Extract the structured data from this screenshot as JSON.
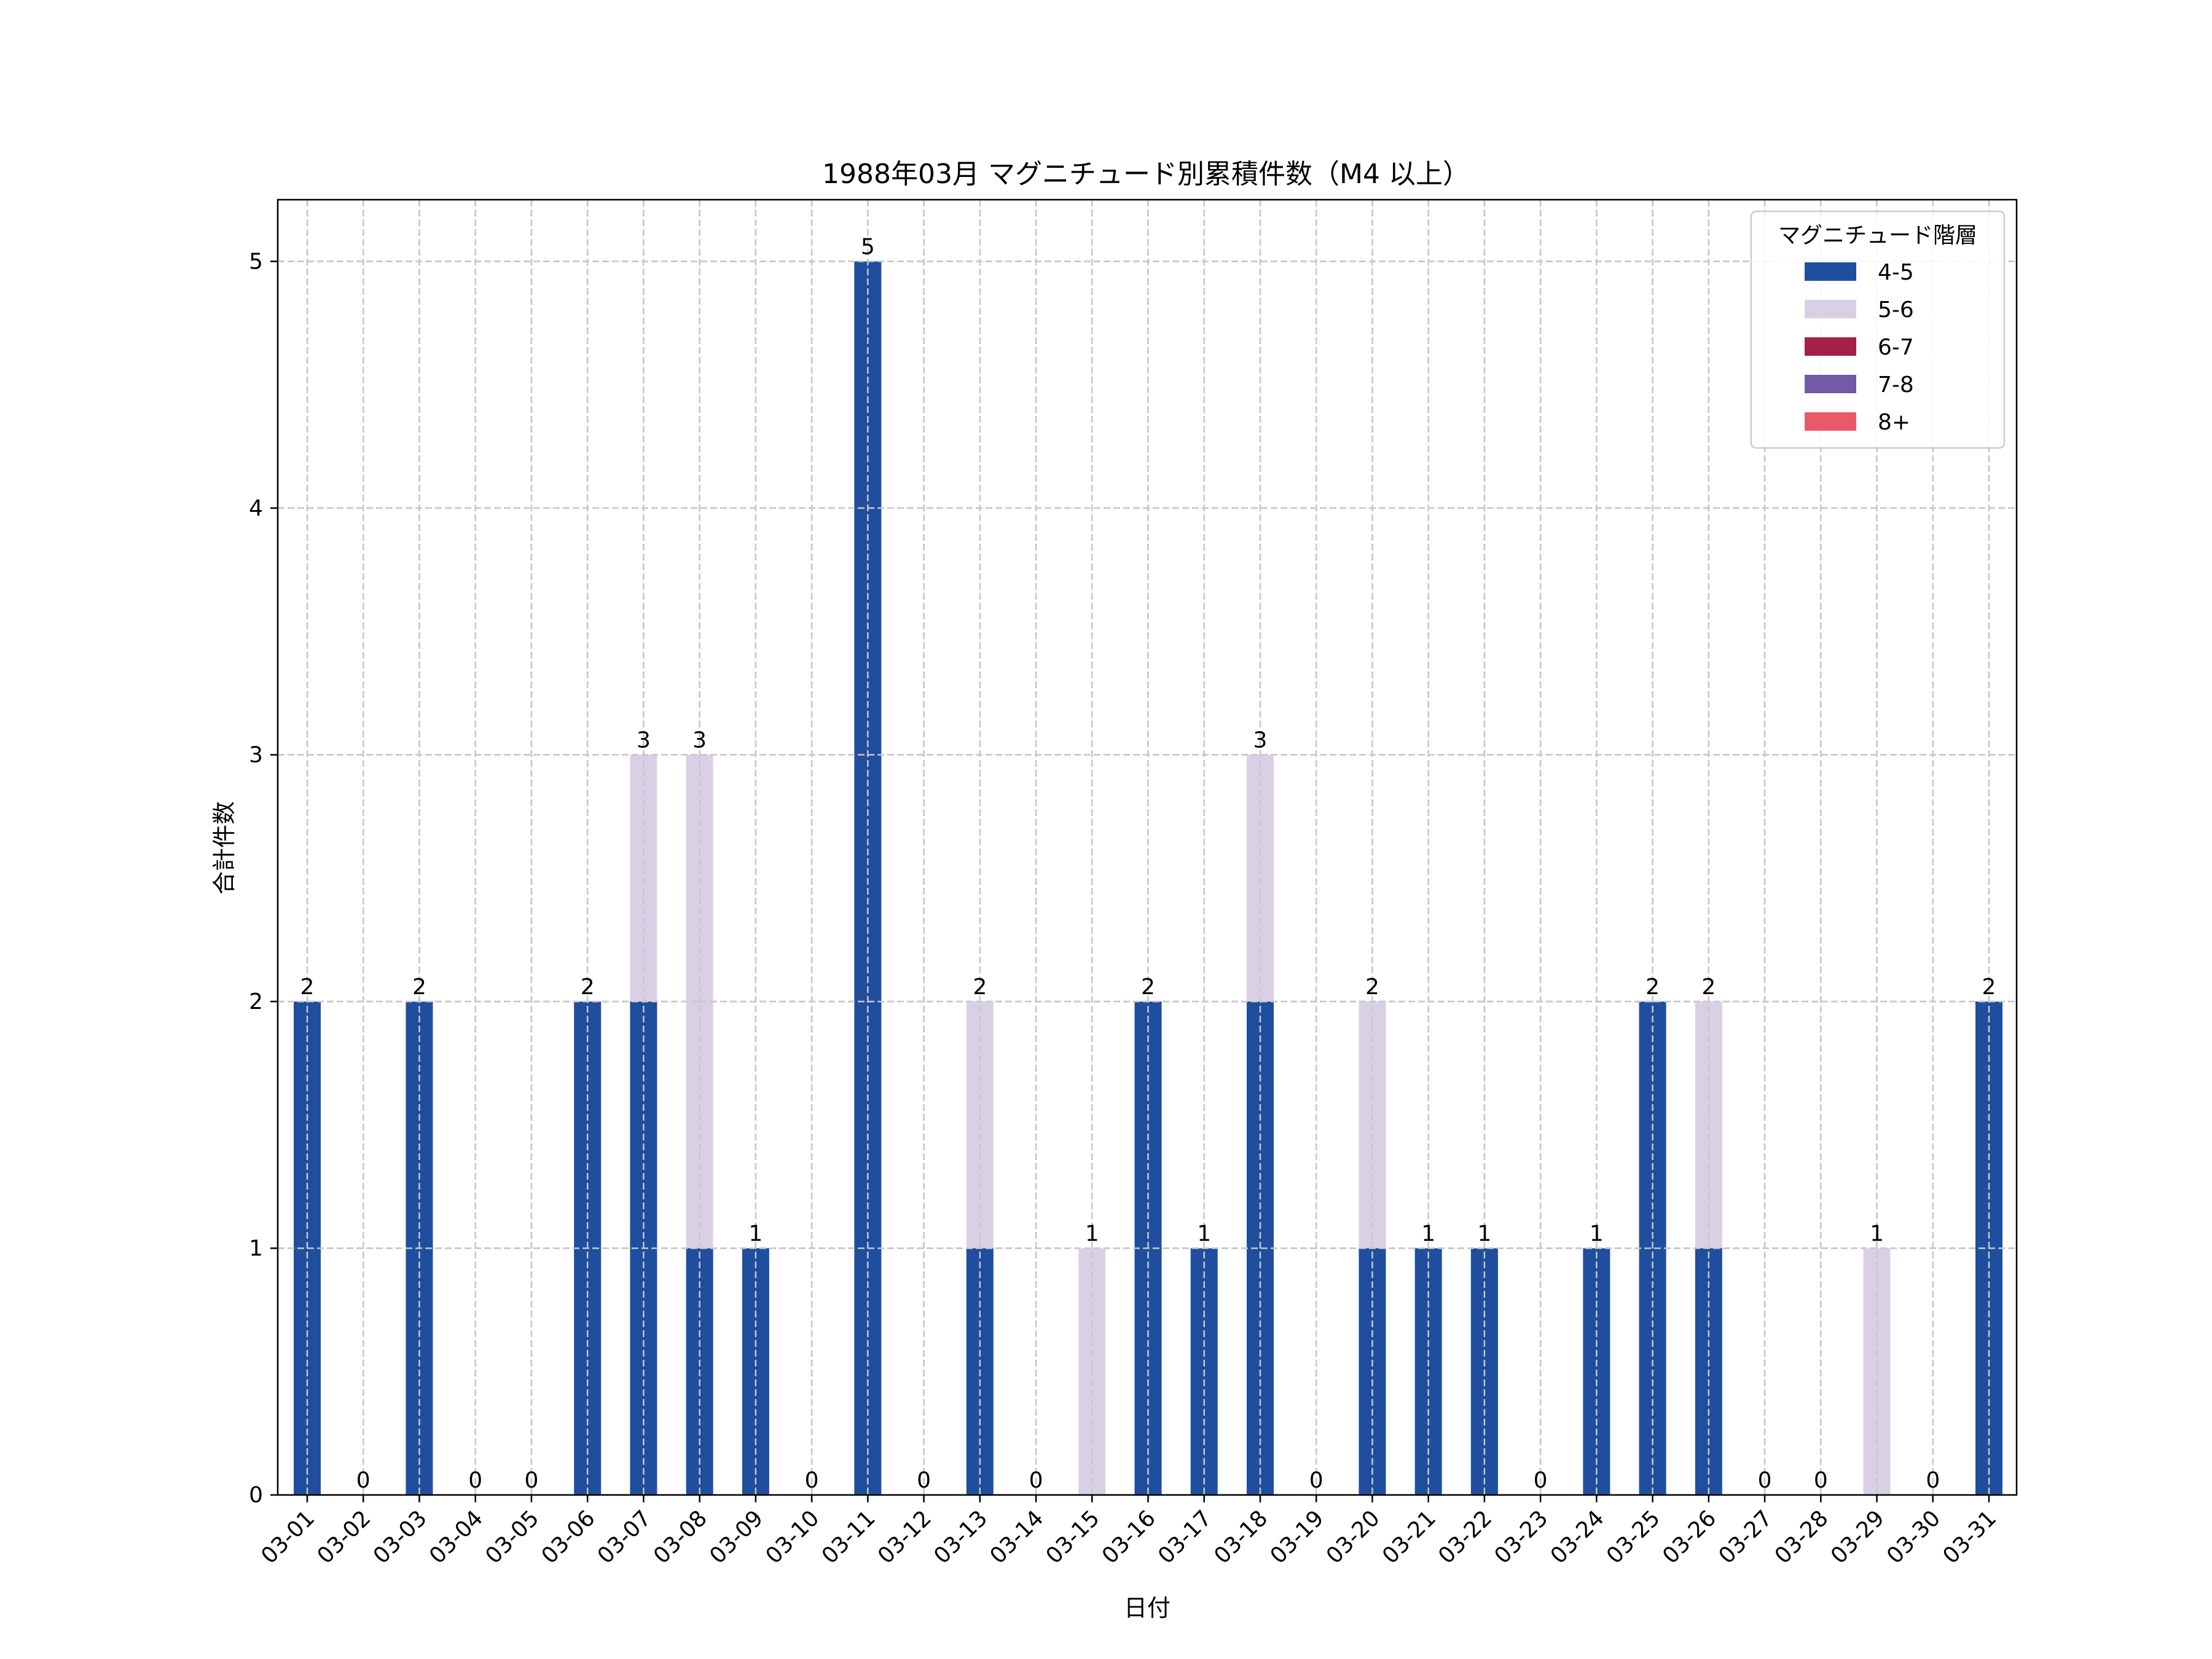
{
  "chart_data": {
    "type": "bar",
    "stacked": true,
    "title": "1988年03月 マグニチュード別累積件数（M4 以上）",
    "xlabel": "日付",
    "ylabel": "合計件数",
    "ylim": [
      0,
      5.25
    ],
    "yticks": [
      0,
      1,
      2,
      3,
      4,
      5
    ],
    "grid": true,
    "legend_title": "マグニチュード階層",
    "legend_position": "top-right",
    "categories": [
      "03-01",
      "03-02",
      "03-03",
      "03-04",
      "03-05",
      "03-06",
      "03-07",
      "03-08",
      "03-09",
      "03-10",
      "03-11",
      "03-12",
      "03-13",
      "03-14",
      "03-15",
      "03-16",
      "03-17",
      "03-18",
      "03-19",
      "03-20",
      "03-21",
      "03-22",
      "03-23",
      "03-24",
      "03-25",
      "03-26",
      "03-27",
      "03-28",
      "03-29",
      "03-30",
      "03-31"
    ],
    "series": [
      {
        "name": "4-5",
        "color": "#1f4e9e",
        "values": [
          2,
          0,
          2,
          0,
          0,
          2,
          2,
          1,
          1,
          0,
          5,
          0,
          1,
          0,
          0,
          2,
          1,
          2,
          0,
          1,
          1,
          1,
          0,
          1,
          2,
          1,
          0,
          0,
          0,
          0,
          2
        ]
      },
      {
        "name": "5-6",
        "color": "#dad0e6",
        "values": [
          0,
          0,
          0,
          0,
          0,
          0,
          1,
          2,
          0,
          0,
          0,
          0,
          1,
          0,
          1,
          0,
          0,
          1,
          0,
          1,
          0,
          0,
          0,
          0,
          0,
          1,
          0,
          0,
          1,
          0,
          0
        ]
      },
      {
        "name": "6-7",
        "color": "#a51f47",
        "values": [
          0,
          0,
          0,
          0,
          0,
          0,
          0,
          0,
          0,
          0,
          0,
          0,
          0,
          0,
          0,
          0,
          0,
          0,
          0,
          0,
          0,
          0,
          0,
          0,
          0,
          0,
          0,
          0,
          0,
          0,
          0
        ]
      },
      {
        "name": "7-8",
        "color": "#7459a6",
        "values": [
          0,
          0,
          0,
          0,
          0,
          0,
          0,
          0,
          0,
          0,
          0,
          0,
          0,
          0,
          0,
          0,
          0,
          0,
          0,
          0,
          0,
          0,
          0,
          0,
          0,
          0,
          0,
          0,
          0,
          0,
          0
        ]
      },
      {
        "name": "8+",
        "color": "#e85a6a",
        "values": [
          0,
          0,
          0,
          0,
          0,
          0,
          0,
          0,
          0,
          0,
          0,
          0,
          0,
          0,
          0,
          0,
          0,
          0,
          0,
          0,
          0,
          0,
          0,
          0,
          0,
          0,
          0,
          0,
          0,
          0,
          0
        ]
      }
    ],
    "totals": [
      2,
      0,
      2,
      0,
      0,
      2,
      3,
      3,
      1,
      0,
      5,
      0,
      2,
      0,
      1,
      2,
      1,
      3,
      0,
      2,
      1,
      1,
      0,
      1,
      2,
      2,
      0,
      0,
      1,
      0,
      2
    ]
  }
}
